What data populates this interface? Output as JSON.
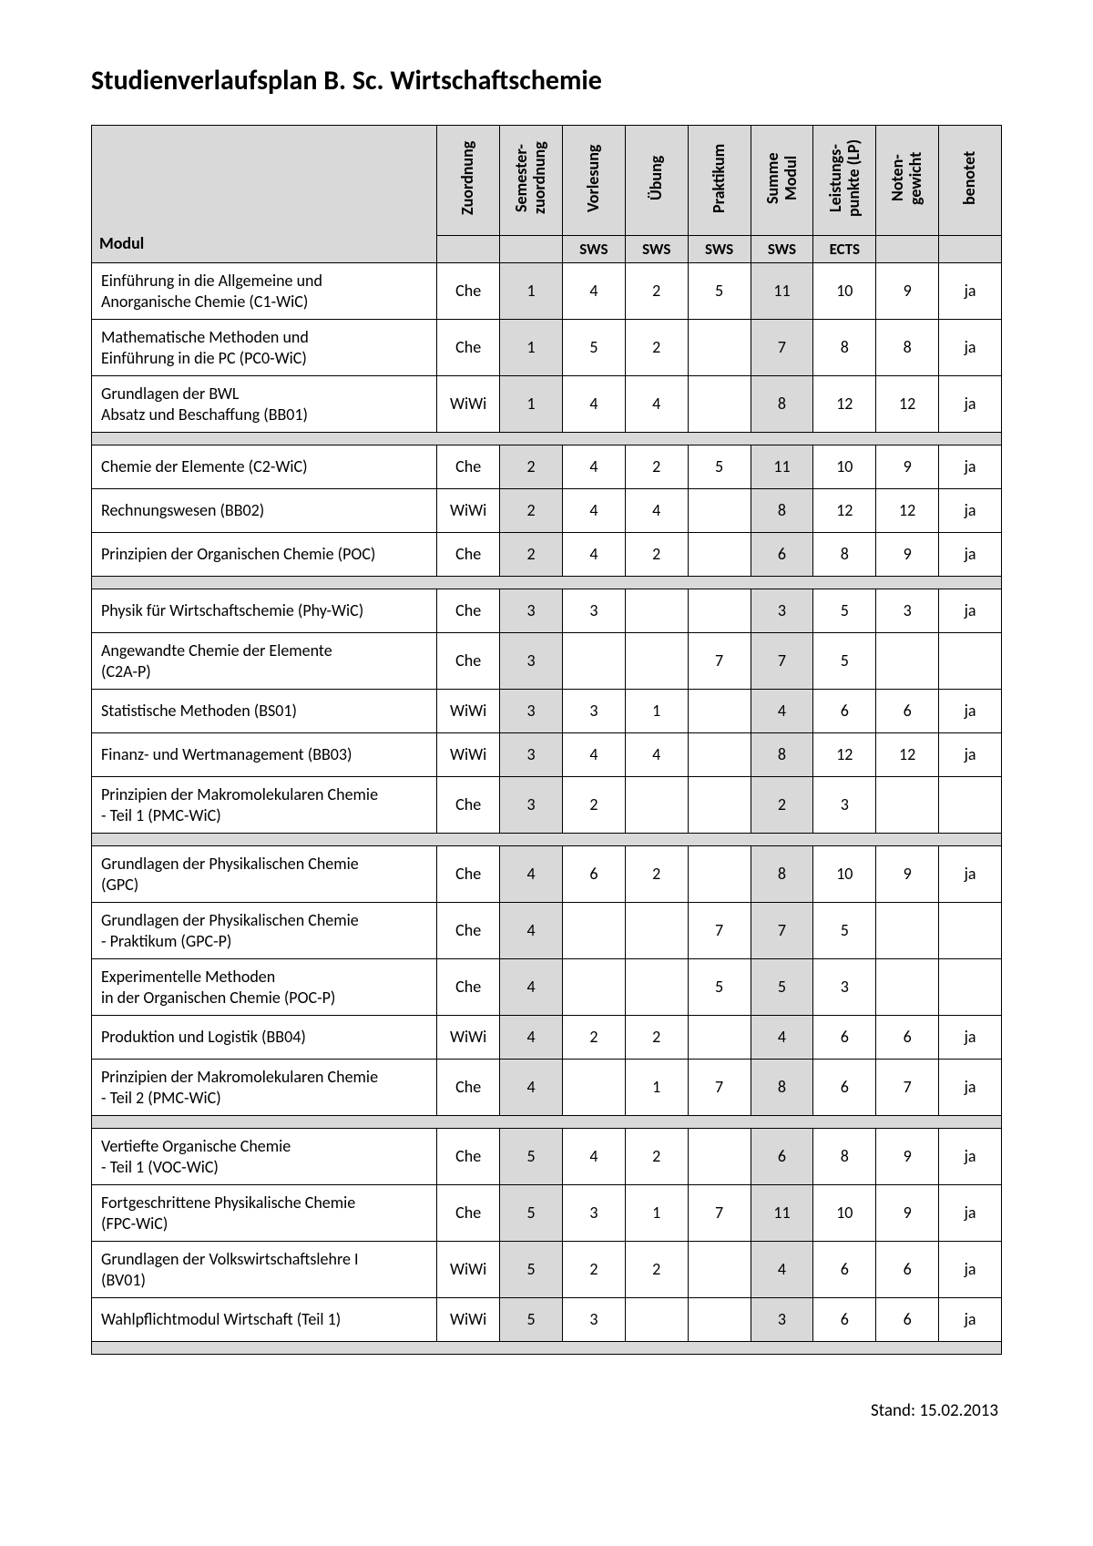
{
  "title": "Studienverlaufsplan B. Sc. Wirtschaftschemie",
  "footer": "Stand: 15.02.2013",
  "colors": {
    "shade": "#d9d9d9",
    "border": "#000000",
    "background": "#ffffff",
    "text": "#000000"
  },
  "table": {
    "type": "table",
    "header": {
      "modul": "Modul",
      "cols": [
        "Zuordnung",
        "Semester-\nzuordnung",
        "Vorlesung",
        "Übung",
        "Praktikum",
        "Summe\nModul",
        "Leistungs-\npunkte (LP)",
        "Noten-\ngewicht",
        "benotet"
      ],
      "units": [
        "",
        "",
        "SWS",
        "SWS",
        "SWS",
        "SWS",
        "ECTS",
        "",
        ""
      ]
    },
    "shade_cols": [
      1,
      5
    ],
    "groups": [
      {
        "rows": [
          {
            "modul": "Einführung in die Allgemeine und\nAnorganische Chemie (C1-WiC)",
            "c": [
              "Che",
              "1",
              "4",
              "2",
              "5",
              "11",
              "10",
              "9",
              "ja"
            ]
          },
          {
            "modul": "Mathematische Methoden und\nEinführung in die PC (PC0-WiC)",
            "c": [
              "Che",
              "1",
              "5",
              "2",
              "",
              "7",
              "8",
              "8",
              "ja"
            ]
          },
          {
            "modul": "Grundlagen der BWL\nAbsatz und Beschaffung (BB01)",
            "c": [
              "WiWi",
              "1",
              "4",
              "4",
              "",
              "8",
              "12",
              "12",
              "ja"
            ]
          }
        ]
      },
      {
        "rows": [
          {
            "modul": "Chemie der Elemente (C2-WiC)",
            "c": [
              "Che",
              "2",
              "4",
              "2",
              "5",
              "11",
              "10",
              "9",
              "ja"
            ]
          },
          {
            "modul": "Rechnungswesen (BB02)",
            "c": [
              "WiWi",
              "2",
              "4",
              "4",
              "",
              "8",
              "12",
              "12",
              "ja"
            ]
          },
          {
            "modul": "Prinzipien der Organischen Chemie (POC)",
            "c": [
              "Che",
              "2",
              "4",
              "2",
              "",
              "6",
              "8",
              "9",
              "ja"
            ]
          }
        ]
      },
      {
        "rows": [
          {
            "modul": "Physik für Wirtschaftschemie (Phy-WiC)",
            "c": [
              "Che",
              "3",
              "3",
              "",
              "",
              "3",
              "5",
              "3",
              "ja"
            ]
          },
          {
            "modul": "Angewandte Chemie der Elemente\n(C2A-P)",
            "c": [
              "Che",
              "3",
              "",
              "",
              "7",
              "7",
              "5",
              "",
              ""
            ]
          },
          {
            "modul": "Statistische Methoden (BS01)",
            "c": [
              "WiWi",
              "3",
              "3",
              "1",
              "",
              "4",
              "6",
              "6",
              "ja"
            ]
          },
          {
            "modul": "Finanz- und Wertmanagement (BB03)",
            "c": [
              "WiWi",
              "3",
              "4",
              "4",
              "",
              "8",
              "12",
              "12",
              "ja"
            ]
          },
          {
            "modul": "Prinzipien der Makromolekularen Chemie\n- Teil 1 (PMC-WiC)",
            "c": [
              "Che",
              "3",
              "2",
              "",
              "",
              "2",
              "3",
              "",
              ""
            ]
          }
        ]
      },
      {
        "rows": [
          {
            "modul": "Grundlagen der Physikalischen Chemie\n(GPC)",
            "c": [
              "Che",
              "4",
              "6",
              "2",
              "",
              "8",
              "10",
              "9",
              "ja"
            ]
          },
          {
            "modul": "Grundlagen der Physikalischen Chemie\n- Praktikum (GPC-P)",
            "c": [
              "Che",
              "4",
              "",
              "",
              "7",
              "7",
              "5",
              "",
              ""
            ]
          },
          {
            "modul": "Experimentelle Methoden\nin der Organischen Chemie (POC-P)",
            "c": [
              "Che",
              "4",
              "",
              "",
              "5",
              "5",
              "3",
              "",
              ""
            ]
          },
          {
            "modul": "Produktion und Logistik (BB04)",
            "c": [
              "WiWi",
              "4",
              "2",
              "2",
              "",
              "4",
              "6",
              "6",
              "ja"
            ]
          },
          {
            "modul": "Prinzipien der Makromolekularen Chemie\n- Teil 2 (PMC-WiC)",
            "c": [
              "Che",
              "4",
              "",
              "1",
              "7",
              "8",
              "6",
              "7",
              "ja"
            ]
          }
        ]
      },
      {
        "rows": [
          {
            "modul": "Vertiefte Organische Chemie\n- Teil 1 (VOC-WiC)",
            "c": [
              "Che",
              "5",
              "4",
              "2",
              "",
              "6",
              "8",
              "9",
              "ja"
            ]
          },
          {
            "modul": "Fortgeschrittene Physikalische Chemie\n(FPC-WiC)",
            "c": [
              "Che",
              "5",
              "3",
              "1",
              "7",
              "11",
              "10",
              "9",
              "ja"
            ]
          },
          {
            "modul": "Grundlagen der Volkswirtschaftslehre I\n(BV01)",
            "c": [
              "WiWi",
              "5",
              "2",
              "2",
              "",
              "4",
              "6",
              "6",
              "ja"
            ]
          },
          {
            "modul": "Wahlpflichtmodul Wirtschaft (Teil 1)",
            "c": [
              "WiWi",
              "5",
              "3",
              "",
              "",
              "3",
              "6",
              "6",
              "ja"
            ]
          }
        ]
      }
    ],
    "trailing_spacer": true
  }
}
